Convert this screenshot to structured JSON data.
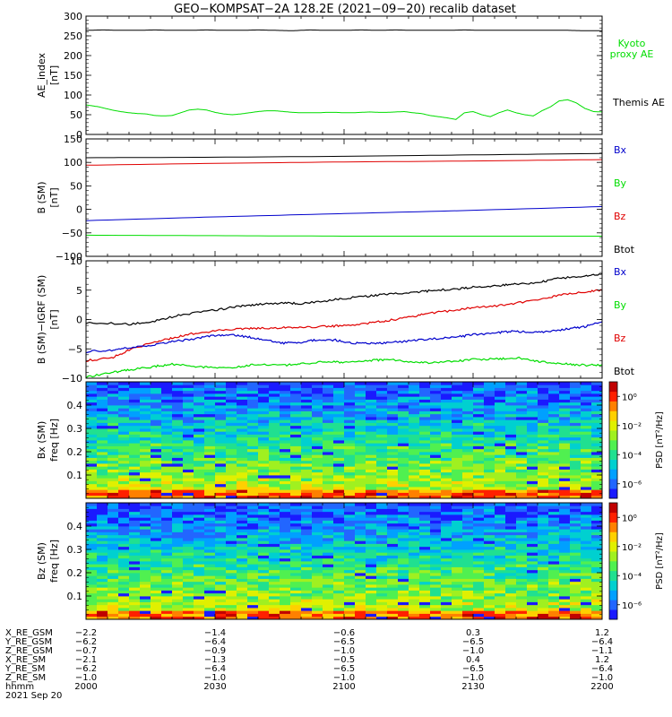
{
  "title": "GEO−KOMPSAT−2A 128.2E (2021−09−20) recalib dataset",
  "colors": {
    "black": "#000000",
    "red": "#e00000",
    "blue": "#0000cc",
    "green": "#00dd00"
  },
  "chart_data": [
    {
      "type": "line",
      "ylabel": [
        "AE_index",
        "[nT]"
      ],
      "ylim": [
        0,
        300
      ],
      "yticks": [
        0,
        50,
        100,
        150,
        200,
        250,
        300
      ],
      "legend": [
        {
          "name": "Kyoto\nproxy AE",
          "color": "#00dd00"
        },
        {
          "name": "Themis AE",
          "color": "#000000"
        }
      ],
      "series": [
        {
          "name": "Themis AE",
          "color": "#000000",
          "x": [
            0,
            4,
            8,
            12,
            16,
            20,
            24,
            28,
            32,
            36,
            40,
            44,
            48,
            52,
            56,
            60,
            64,
            68,
            72,
            76,
            80,
            84,
            88,
            92,
            96,
            100,
            104,
            108,
            112,
            116,
            120
          ],
          "y": [
            264,
            265,
            264,
            264,
            265,
            264,
            264,
            265,
            264,
            264,
            265,
            264,
            263,
            265,
            264,
            264,
            265,
            264,
            265,
            264,
            264,
            264,
            265,
            264,
            264,
            264,
            264,
            264,
            264,
            263,
            263
          ]
        },
        {
          "name": "Kyoto proxy AE",
          "color": "#00dd00",
          "x": [
            0,
            3,
            6,
            8,
            10,
            12,
            14,
            16,
            18,
            20,
            22,
            24,
            26,
            28,
            30,
            32,
            34,
            36,
            38,
            40,
            42,
            44,
            46,
            48,
            50,
            52,
            54,
            56,
            58,
            60,
            62,
            64,
            66,
            68,
            70,
            72,
            74,
            76,
            78,
            80,
            82,
            84,
            86,
            88,
            90,
            92,
            94,
            96,
            98,
            100,
            102,
            104,
            106,
            108,
            110,
            112,
            114,
            116,
            118,
            120
          ],
          "y": [
            75,
            70,
            62,
            58,
            55,
            53,
            52,
            48,
            47,
            48,
            55,
            62,
            64,
            62,
            56,
            52,
            50,
            52,
            55,
            58,
            60,
            60,
            58,
            56,
            55,
            55,
            55,
            56,
            56,
            55,
            55,
            56,
            57,
            56,
            56,
            57,
            58,
            55,
            53,
            48,
            45,
            42,
            38,
            55,
            58,
            50,
            45,
            55,
            62,
            55,
            50,
            47,
            60,
            70,
            85,
            88,
            80,
            66,
            58,
            57
          ]
        }
      ]
    },
    {
      "type": "line",
      "ylabel": [
        "B (SM)",
        "[nT]"
      ],
      "ylim": [
        -100,
        150
      ],
      "yticks": [
        -100,
        -50,
        0,
        50,
        100,
        150
      ],
      "legend": [
        {
          "name": "Bx",
          "color": "#0000cc"
        },
        {
          "name": "By",
          "color": "#00dd00"
        },
        {
          "name": "Bz",
          "color": "#e00000"
        },
        {
          "name": "Btot",
          "color": "#000000"
        }
      ],
      "series": [
        {
          "name": "Btot",
          "color": "#000000",
          "x": [
            0,
            30,
            60,
            90,
            120
          ],
          "y": [
            110,
            111,
            113,
            116,
            119
          ]
        },
        {
          "name": "Bz",
          "color": "#e00000",
          "x": [
            0,
            30,
            60,
            90,
            120
          ],
          "y": [
            94,
            98,
            101,
            103,
            106
          ]
        },
        {
          "name": "Bx",
          "color": "#0000cc",
          "x": [
            0,
            30,
            60,
            90,
            120
          ],
          "y": [
            -24,
            -16,
            -9,
            -2,
            6
          ]
        },
        {
          "name": "By",
          "color": "#00dd00",
          "x": [
            0,
            30,
            60,
            90,
            120
          ],
          "y": [
            -55,
            -56,
            -57,
            -57,
            -57
          ]
        }
      ]
    },
    {
      "type": "line",
      "ylabel": [
        "B (SM)−IGRF (SM)",
        "[nT]"
      ],
      "ylim": [
        -10,
        10
      ],
      "yticks": [
        -10,
        -5,
        0,
        5,
        10
      ],
      "legend": [
        {
          "name": "Bx",
          "color": "#0000cc"
        },
        {
          "name": "By",
          "color": "#00dd00"
        },
        {
          "name": "Bz",
          "color": "#e00000"
        },
        {
          "name": "Btot",
          "color": "#000000"
        }
      ],
      "series": [
        {
          "name": "Btot",
          "color": "#000000",
          "x": [
            0,
            10,
            16,
            22,
            30,
            36,
            40,
            46,
            50,
            56,
            60,
            66,
            70,
            76,
            80,
            86,
            90,
            96,
            100,
            106,
            110,
            116,
            120
          ],
          "y": [
            -0.5,
            -0.8,
            -0.3,
            0.8,
            1.6,
            2.3,
            2.6,
            2.8,
            2.7,
            3.2,
            3.6,
            4.0,
            4.3,
            4.6,
            4.9,
            5.2,
            5.5,
            5.8,
            6.0,
            6.4,
            7.0,
            7.4,
            7.8
          ]
        },
        {
          "name": "Bz",
          "color": "#e00000",
          "x": [
            0,
            6,
            10,
            16,
            20,
            24,
            30,
            36,
            40,
            46,
            50,
            56,
            60,
            66,
            70,
            76,
            80,
            86,
            90,
            96,
            100,
            106,
            110,
            116,
            120
          ],
          "y": [
            -7.0,
            -6.5,
            -5.2,
            -3.8,
            -3.2,
            -2.5,
            -1.9,
            -1.6,
            -1.5,
            -1.4,
            -1.3,
            -1.2,
            -1.0,
            -0.6,
            -0.2,
            0.5,
            1.1,
            1.6,
            2.0,
            2.4,
            2.8,
            3.5,
            4.2,
            4.7,
            5.0
          ]
        },
        {
          "name": "Bx",
          "color": "#0000cc",
          "x": [
            0,
            6,
            10,
            16,
            20,
            26,
            30,
            34,
            38,
            42,
            46,
            50,
            54,
            58,
            62,
            66,
            70,
            76,
            80,
            86,
            90,
            96,
            100,
            104,
            108,
            112,
            116,
            120
          ],
          "y": [
            -5.5,
            -5.2,
            -4.8,
            -4.3,
            -3.8,
            -3.2,
            -2.7,
            -2.6,
            -3.0,
            -3.6,
            -4.0,
            -3.9,
            -3.4,
            -3.5,
            -4.0,
            -4.1,
            -4.0,
            -3.6,
            -3.3,
            -3.0,
            -2.6,
            -2.2,
            -2.0,
            -2.2,
            -2.0,
            -1.6,
            -1.2,
            -0.4
          ]
        },
        {
          "name": "By",
          "color": "#00dd00",
          "x": [
            0,
            6,
            10,
            16,
            20,
            26,
            30,
            36,
            40,
            46,
            50,
            56,
            60,
            66,
            70,
            76,
            80,
            86,
            90,
            96,
            100,
            104,
            108,
            112,
            116,
            120
          ],
          "y": [
            -9.8,
            -9.0,
            -8.6,
            -8.0,
            -7.6,
            -8.0,
            -8.3,
            -8.0,
            -7.6,
            -7.8,
            -7.5,
            -7.2,
            -7.3,
            -7.0,
            -6.8,
            -7.2,
            -7.4,
            -7.1,
            -6.8,
            -6.7,
            -6.5,
            -7.0,
            -7.4,
            -7.6,
            -7.8,
            -7.7
          ]
        }
      ]
    },
    {
      "type": "heatmap",
      "ylabel": [
        "Bx (SM)",
        "freq [Hz]"
      ],
      "ylim": [
        0,
        0.5
      ],
      "yticks": [
        0.1,
        0.2,
        0.3,
        0.4
      ],
      "colorbar": {
        "label": "PSD [nT²/Hz]",
        "ticks": [
          "10⁰",
          "10⁻²",
          "10⁻⁴",
          "10⁻⁶"
        ],
        "range_log10": [
          -7,
          1
        ]
      },
      "colors": [
        "#1a1aff",
        "#2266ff",
        "#00a0ff",
        "#00d0d0",
        "#20e090",
        "#50f050",
        "#a0f020",
        "#e0f000",
        "#ffd000",
        "#ff8000",
        "#ff2000",
        "#c00000"
      ]
    },
    {
      "type": "heatmap",
      "ylabel": [
        "Bz (SM)",
        "freq [Hz]"
      ],
      "ylim": [
        0,
        0.5
      ],
      "yticks": [
        0.1,
        0.2,
        0.3,
        0.4
      ],
      "colorbar": {
        "label": "PSD [nT²/Hz]",
        "ticks": [
          "10⁰",
          "10⁻²",
          "10⁻⁴",
          "10⁻⁶"
        ],
        "range_log10": [
          -7,
          1
        ]
      },
      "colors": [
        "#1a1aff",
        "#2266ff",
        "#00a0ff",
        "#00d0d0",
        "#20e090",
        "#50f050",
        "#a0f020",
        "#e0f000",
        "#ffd000",
        "#ff8000",
        "#ff2000",
        "#c00000"
      ]
    }
  ],
  "time_axis": {
    "rows": [
      {
        "label": "X_RE_GSM",
        "values": [
          "−2.2",
          "−1.4",
          "−0.6",
          "0.3",
          "1.2"
        ]
      },
      {
        "label": "Y_RE_GSM",
        "values": [
          "−6.2",
          "−6.4",
          "−6.5",
          "−6.5",
          "−6.4"
        ]
      },
      {
        "label": "Z_RE_GSM",
        "values": [
          "−0.7",
          "−0.9",
          "−1.0",
          "−1.0",
          "−1.1"
        ]
      },
      {
        "label": "X_RE_SM",
        "values": [
          "−2.1",
          "−1.3",
          "−0.5",
          "0.4",
          "1.2"
        ]
      },
      {
        "label": "Y_RE_SM",
        "values": [
          "−6.2",
          "−6.4",
          "−6.5",
          "−6.5",
          "−6.4"
        ]
      },
      {
        "label": "Z_RE_SM",
        "values": [
          "−1.0",
          "−1.0",
          "−1.0",
          "−1.0",
          "−1.0"
        ]
      },
      {
        "label": "hhmm",
        "values": [
          "2000",
          "2030",
          "2100",
          "2130",
          "2200"
        ]
      }
    ],
    "date": "2021 Sep 20",
    "xlim": [
      0,
      120
    ]
  }
}
